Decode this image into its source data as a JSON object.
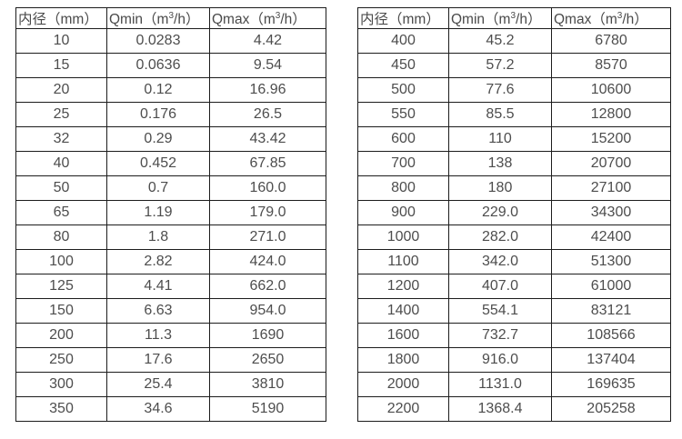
{
  "headers": {
    "diameter": "内径（mm）",
    "qmin": {
      "pre": "Qmin（m",
      "sup": "3",
      "post": "/h）"
    },
    "qmax": {
      "pre": "Qmax（m",
      "sup": "3",
      "post": "/h）"
    }
  },
  "colors": {
    "border": "#1c1c1c",
    "text": "#4d4d4d",
    "background": "#ffffff"
  },
  "tables": [
    {
      "name": "flow-table-small-diameters",
      "rows": [
        [
          "10",
          "0.0283",
          "4.42"
        ],
        [
          "15",
          "0.0636",
          "9.54"
        ],
        [
          "20",
          "0.12",
          "16.96"
        ],
        [
          "25",
          "0.176",
          "26.5"
        ],
        [
          "32",
          "0.29",
          "43.42"
        ],
        [
          "40",
          "0.452",
          "67.85"
        ],
        [
          "50",
          "0.7",
          "160.0"
        ],
        [
          "65",
          "1.19",
          "179.0"
        ],
        [
          "80",
          "1.8",
          "271.0"
        ],
        [
          "100",
          "2.82",
          "424.0"
        ],
        [
          "125",
          "4.41",
          "662.0"
        ],
        [
          "150",
          "6.63",
          "954.0"
        ],
        [
          "200",
          "11.3",
          "1690"
        ],
        [
          "250",
          "17.6",
          "2650"
        ],
        [
          "300",
          "25.4",
          "3810"
        ],
        [
          "350",
          "34.6",
          "5190"
        ]
      ]
    },
    {
      "name": "flow-table-large-diameters",
      "rows": [
        [
          "400",
          "45.2",
          "6780"
        ],
        [
          "450",
          "57.2",
          "8570"
        ],
        [
          "500",
          "77.6",
          "10600"
        ],
        [
          "550",
          "85.5",
          "12800"
        ],
        [
          "600",
          "110",
          "15200"
        ],
        [
          "700",
          "138",
          "20700"
        ],
        [
          "800",
          "180",
          "27100"
        ],
        [
          "900",
          "229.0",
          "34300"
        ],
        [
          "1000",
          "282.0",
          "42400"
        ],
        [
          "1100",
          "342.0",
          "51300"
        ],
        [
          "1200",
          "407.0",
          "61000"
        ],
        [
          "1400",
          "554.1",
          "83121"
        ],
        [
          "1600",
          "732.7",
          "108566"
        ],
        [
          "1800",
          "916.0",
          "137404"
        ],
        [
          "2000",
          "1131.0",
          "169635"
        ],
        [
          "2200",
          "1368.4",
          "205258"
        ]
      ]
    }
  ]
}
